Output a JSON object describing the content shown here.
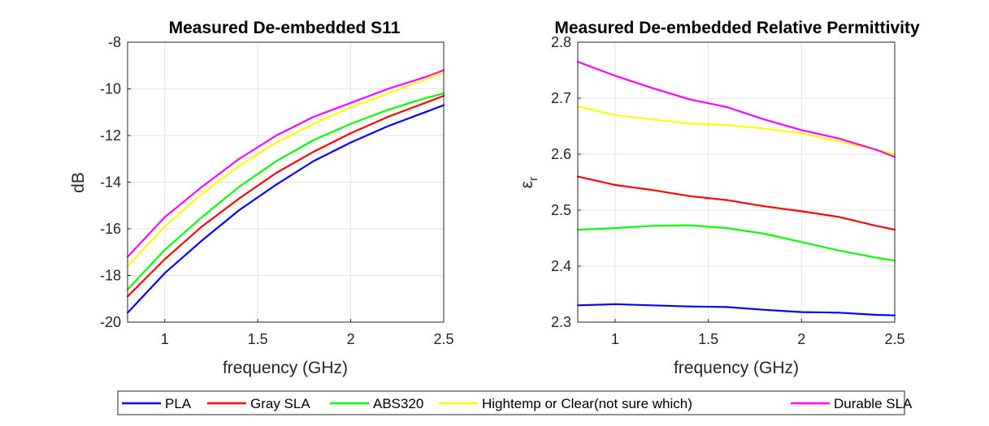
{
  "chart_data": [
    {
      "type": "line",
      "title": "Measured De-embedded S11",
      "xlabel": "frequency (GHz)",
      "ylabel": "dB",
      "xlim": [
        0.8,
        2.5
      ],
      "ylim": [
        -20,
        -8
      ],
      "xticks": [
        "1",
        "1.5",
        "2",
        "2.5"
      ],
      "yticks": [
        "-20",
        "-18",
        "-16",
        "-14",
        "-12",
        "-10",
        "-8"
      ],
      "grid": true,
      "x": [
        0.8,
        1.0,
        1.2,
        1.4,
        1.6,
        1.8,
        2.0,
        2.2,
        2.4,
        2.5
      ],
      "series": [
        {
          "name": "PLA",
          "color": "#0000ff",
          "values": [
            -19.6,
            -17.9,
            -16.5,
            -15.2,
            -14.1,
            -13.1,
            -12.3,
            -11.6,
            -11.0,
            -10.7
          ]
        },
        {
          "name": "Gray SLA",
          "color": "#ff0000",
          "values": [
            -18.9,
            -17.3,
            -15.9,
            -14.7,
            -13.6,
            -12.7,
            -11.9,
            -11.2,
            -10.6,
            -10.3
          ]
        },
        {
          "name": "ABS320",
          "color": "#00ff00",
          "values": [
            -18.6,
            -16.9,
            -15.5,
            -14.2,
            -13.1,
            -12.2,
            -11.5,
            -10.9,
            -10.4,
            -10.2
          ]
        },
        {
          "name": "Hightemp or Clear(not sure which)",
          "color": "#ffff00",
          "values": [
            -17.6,
            -15.9,
            -14.5,
            -13.3,
            -12.3,
            -11.5,
            -10.8,
            -10.2,
            -9.6,
            -9.3
          ]
        },
        {
          "name": "Durable SLA",
          "color": "#ff00ff",
          "values": [
            -17.2,
            -15.5,
            -14.2,
            -13.0,
            -12.0,
            -11.2,
            -10.6,
            -10.0,
            -9.5,
            -9.2
          ]
        }
      ]
    },
    {
      "type": "line",
      "title": "Measured De-embedded Relative Permittivity",
      "xlabel": "frequency (GHz)",
      "ylabel": "ε",
      "ylabel_sub": "r",
      "xlim": [
        0.8,
        2.5
      ],
      "ylim": [
        2.3,
        2.8
      ],
      "xticks": [
        "1",
        "1.5",
        "2",
        "2.5"
      ],
      "yticks": [
        "2.3",
        "2.4",
        "2.5",
        "2.6",
        "2.7",
        "2.8"
      ],
      "grid": true,
      "x": [
        0.8,
        1.0,
        1.2,
        1.4,
        1.6,
        1.8,
        2.0,
        2.2,
        2.4,
        2.5
      ],
      "series": [
        {
          "name": "PLA",
          "color": "#0000ff",
          "values": [
            2.33,
            2.332,
            2.33,
            2.328,
            2.327,
            2.322,
            2.318,
            2.317,
            2.313,
            2.312
          ]
        },
        {
          "name": "Gray SLA",
          "color": "#ff0000",
          "values": [
            2.56,
            2.545,
            2.536,
            2.525,
            2.518,
            2.507,
            2.498,
            2.488,
            2.472,
            2.465
          ]
        },
        {
          "name": "ABS320",
          "color": "#00ff00",
          "values": [
            2.465,
            2.468,
            2.472,
            2.473,
            2.468,
            2.458,
            2.443,
            2.428,
            2.415,
            2.41
          ]
        },
        {
          "name": "Hightemp or Clear(not sure which)",
          "color": "#ffff00",
          "values": [
            2.685,
            2.67,
            2.662,
            2.655,
            2.652,
            2.646,
            2.637,
            2.623,
            2.608,
            2.6
          ]
        },
        {
          "name": "Durable SLA",
          "color": "#ff00ff",
          "values": [
            2.765,
            2.74,
            2.718,
            2.698,
            2.684,
            2.662,
            2.643,
            2.628,
            2.608,
            2.595
          ]
        }
      ]
    }
  ],
  "legend": {
    "placement": "bottom",
    "items": [
      {
        "label": "PLA",
        "color": "#0000ff"
      },
      {
        "label": "Gray SLA",
        "color": "#ff0000"
      },
      {
        "label": "ABS320",
        "color": "#00ff00"
      },
      {
        "label": "Hightemp or Clear(not sure which)",
        "color": "#ffff00"
      },
      {
        "label": "Durable SLA",
        "color": "#ff00ff"
      }
    ]
  }
}
